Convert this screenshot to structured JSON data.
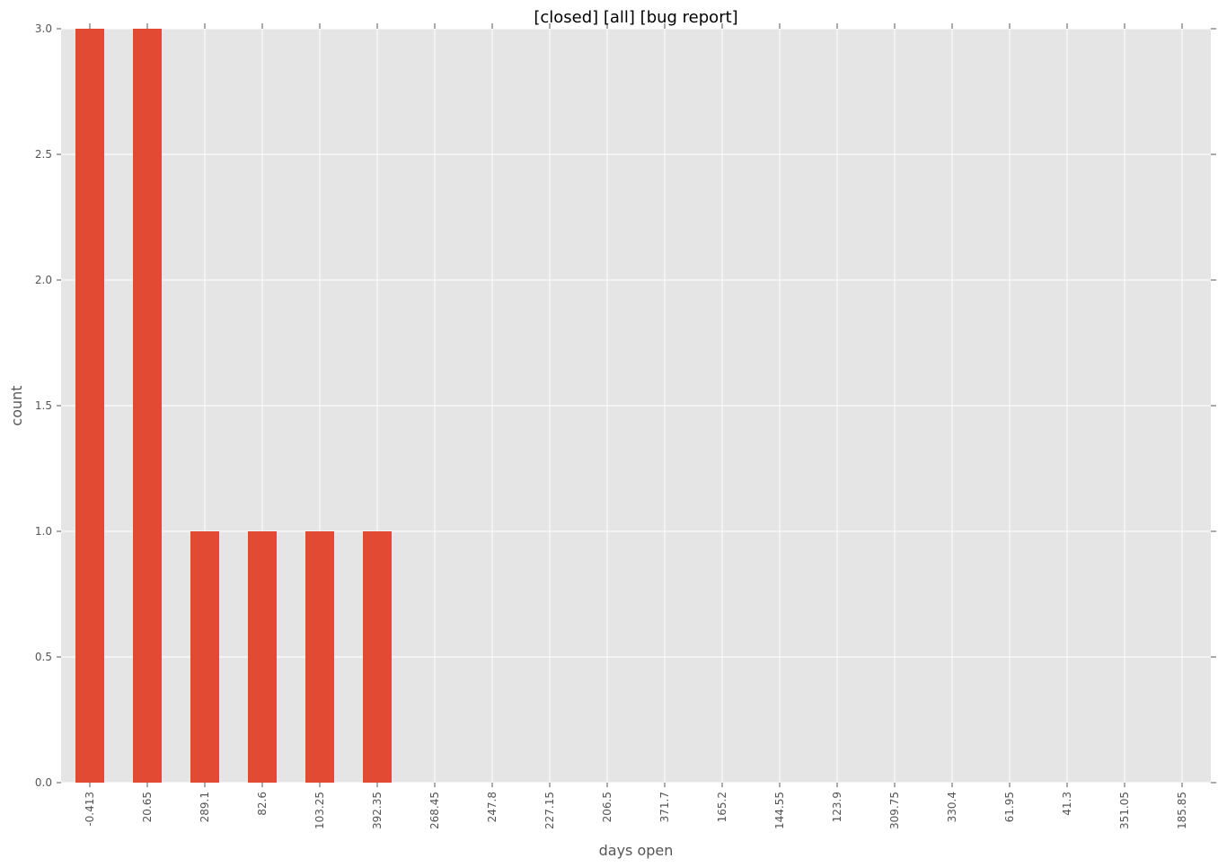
{
  "chart_data": {
    "type": "bar",
    "title": "[closed] [all] [bug report]",
    "xlabel": "days open",
    "ylabel": "count",
    "categories": [
      "-0.413",
      "20.65",
      "289.1",
      "82.6",
      "103.25",
      "392.35",
      "268.45",
      "247.8",
      "227.15",
      "206.5",
      "371.7",
      "165.2",
      "144.55",
      "123.9",
      "309.75",
      "330.4",
      "61.95",
      "41.3",
      "351.05",
      "185.85"
    ],
    "values": [
      3,
      3,
      1,
      1,
      1,
      1,
      0,
      0,
      0,
      0,
      0,
      0,
      0,
      0,
      0,
      0,
      0,
      0,
      0,
      0
    ],
    "ylim": [
      0,
      3.0
    ],
    "yticks": [
      "0.0",
      "0.5",
      "1.0",
      "1.5",
      "2.0",
      "2.5",
      "3.0"
    ],
    "grid": true,
    "colors": {
      "bar": "#E24A33",
      "plot_background": "#E5E5E5",
      "grid": "#FFFFFF",
      "tick_text": "#555555"
    }
  }
}
